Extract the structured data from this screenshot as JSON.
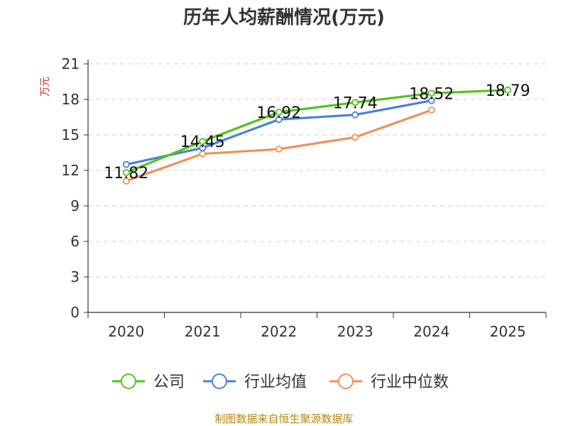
{
  "chart_data": {
    "type": "line",
    "title": "历年人均薪酬情况(万元)",
    "xlabel": "",
    "ylabel": "万元",
    "categories": [
      "2020",
      "2021",
      "2022",
      "2023",
      "2024",
      "2025"
    ],
    "ylim": [
      0,
      21
    ],
    "yticks": [
      0,
      3,
      6,
      9,
      12,
      15,
      18,
      21
    ],
    "grid": true,
    "legend_position": "bottom",
    "series": [
      {
        "name": "公司",
        "color": "#52c41a",
        "values": [
          11.82,
          14.45,
          16.92,
          17.74,
          18.52,
          18.79
        ],
        "labels": [
          "11.82",
          "14.45",
          "16.92",
          "17.74",
          "18.52",
          "18.79"
        ]
      },
      {
        "name": "行业均值",
        "color": "#4a7fdc",
        "values": [
          12.5,
          13.9,
          16.3,
          16.7,
          17.9,
          null
        ],
        "labels": []
      },
      {
        "name": "行业中位数",
        "color": "#f28f5a",
        "values": [
          11.1,
          13.4,
          13.8,
          14.8,
          17.1,
          null
        ],
        "labels": []
      }
    ]
  },
  "footer": {
    "source": "制图数据来自恒生聚源数据库"
  }
}
